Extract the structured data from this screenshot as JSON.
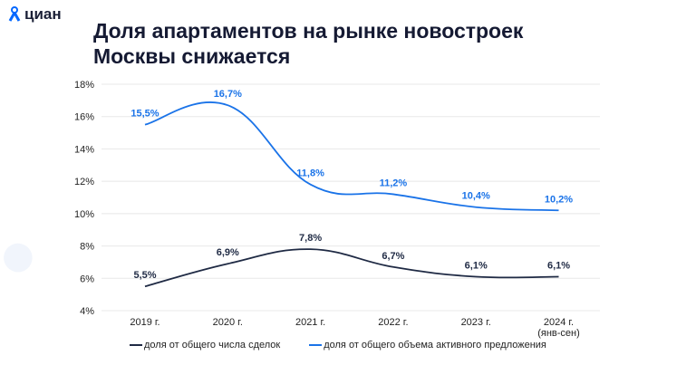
{
  "logo": {
    "text": "циан"
  },
  "title": "Доля апартаментов на рынке новостроек Москвы снижается",
  "colors": {
    "deals": "#1f2a44",
    "supply": "#1a73e8",
    "grid": "#e8e8e8"
  },
  "chart_data": {
    "type": "line",
    "title": "Доля апартаментов на рынке новостроек Москвы снижается",
    "categories": [
      "2019 г.",
      "2020 г.",
      "2021 г.",
      "2022 г.",
      "2023 г.",
      "2024 г."
    ],
    "category_sublabels": [
      "",
      "",
      "",
      "",
      "",
      "(янв-сен)"
    ],
    "ylim": [
      4,
      18
    ],
    "yticks": [
      "4%",
      "6%",
      "8%",
      "10%",
      "12%",
      "14%",
      "16%",
      "18%"
    ],
    "ytick_values": [
      4,
      6,
      8,
      10,
      12,
      14,
      16,
      18
    ],
    "grid": true,
    "legend_position": "bottom",
    "series": [
      {
        "name": "доля от общего числа сделок",
        "values": [
          5.5,
          6.9,
          7.8,
          6.7,
          6.1,
          6.1
        ],
        "labels": [
          "5,5%",
          "6,9%",
          "7,8%",
          "6,7%",
          "6,1%",
          "6,1%"
        ]
      },
      {
        "name": "доля от общего объема активного предложения",
        "values": [
          15.5,
          16.7,
          11.8,
          11.2,
          10.4,
          10.2
        ],
        "labels": [
          "15,5%",
          "16,7%",
          "11,8%",
          "11,2%",
          "10,4%",
          "10,2%"
        ]
      }
    ]
  }
}
